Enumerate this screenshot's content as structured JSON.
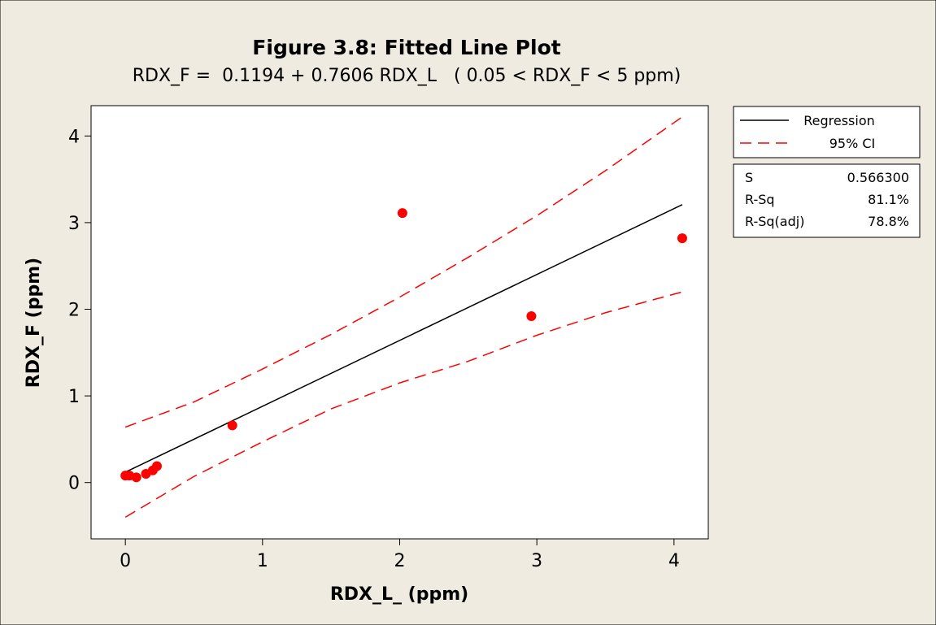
{
  "chart_data": {
    "type": "scatter",
    "title": "Figure 3.8: Fitted Line Plot",
    "subtitle": "RDX_F =  0.1194 + 0.7606 RDX_L   ( 0.05 < RDX_F < 5 ppm)",
    "xlabel": "RDX_L_ (ppm)",
    "ylabel": "RDX_F (ppm)",
    "xlim": [
      -0.25,
      4.25
    ],
    "ylim": [
      -0.65,
      4.35
    ],
    "x_ticks": [
      0,
      1,
      2,
      3,
      4
    ],
    "y_ticks": [
      0,
      1,
      2,
      3,
      4
    ],
    "grid": false,
    "legend_position": "right",
    "points": {
      "x": [
        0.0,
        0.03,
        0.08,
        0.15,
        0.2,
        0.23,
        0.78,
        2.02,
        2.96,
        4.06
      ],
      "y": [
        0.08,
        0.08,
        0.06,
        0.1,
        0.14,
        0.19,
        0.66,
        3.11,
        1.92,
        2.82
      ]
    },
    "regression_line": {
      "x": [
        0,
        4.06
      ],
      "y": [
        0.1194,
        3.2074
      ]
    },
    "ci_upper": {
      "x": [
        0.0,
        0.5,
        1.0,
        1.5,
        2.0,
        2.5,
        3.0,
        3.5,
        4.06
      ],
      "y": [
        0.64,
        0.93,
        1.31,
        1.71,
        2.14,
        2.6,
        3.08,
        3.6,
        4.22
      ]
    },
    "ci_lower": {
      "x": [
        0.0,
        0.5,
        1.0,
        1.5,
        2.0,
        2.5,
        3.0,
        3.5,
        4.06
      ],
      "y": [
        -0.4,
        0.07,
        0.47,
        0.85,
        1.15,
        1.4,
        1.7,
        1.96,
        2.2
      ]
    },
    "legend": {
      "regression_label": "Regression",
      "ci_label": "95% CI"
    },
    "stats": [
      {
        "label": "S",
        "value": "0.566300"
      },
      {
        "label": "R-Sq",
        "value": "81.1%"
      },
      {
        "label": "R-Sq(adj)",
        "value": "78.8%"
      }
    ],
    "colors": {
      "background": "#efebe0",
      "plot_area": "#ffffff",
      "points": "#ff0000",
      "regression": "#000000",
      "ci": "#ff0000"
    }
  }
}
